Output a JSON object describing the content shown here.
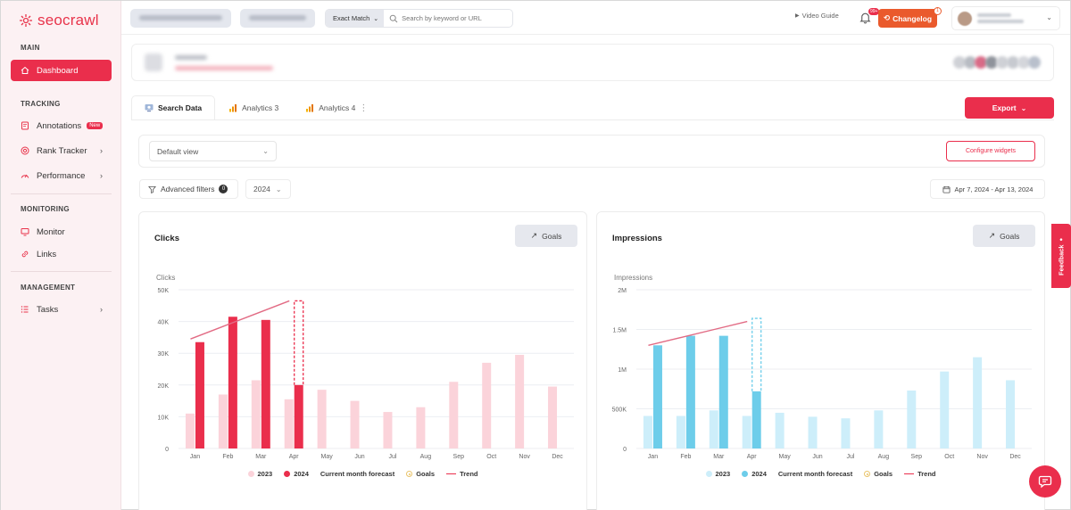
{
  "brand": {
    "name": "seocrawl",
    "accent": "#ea2e4c"
  },
  "sidebar": {
    "sections": [
      {
        "title": "MAIN",
        "items": [
          {
            "label": "Dashboard",
            "icon": "home-icon",
            "active": true
          }
        ]
      },
      {
        "title": "TRACKING",
        "items": [
          {
            "label": "Annotations",
            "icon": "note-icon",
            "badge": "New"
          },
          {
            "label": "Rank Tracker",
            "icon": "target-icon",
            "chevron": true
          },
          {
            "label": "Performance",
            "icon": "gauge-icon",
            "chevron": true
          }
        ]
      },
      {
        "title": "MONITORING",
        "items": [
          {
            "label": "Monitor",
            "icon": "monitor-icon"
          },
          {
            "label": "Links",
            "icon": "link-icon"
          }
        ]
      },
      {
        "title": "MANAGEMENT",
        "items": [
          {
            "label": "Tasks",
            "icon": "tasks-icon",
            "chevron": true
          }
        ]
      }
    ]
  },
  "topbar": {
    "match_type": "Exact Match",
    "search_placeholder": "Search by keyword or URL",
    "video_guide": "Video Guide",
    "notifications_badge": "99+",
    "changelog": "Changelog",
    "changelog_badge": "1"
  },
  "tabs": [
    {
      "label": "Search Data",
      "active": true
    },
    {
      "label": "Analytics 3"
    },
    {
      "label": "Analytics 4"
    }
  ],
  "export_label": "Export",
  "view": {
    "selected": "Default view",
    "configure_label": "Configure widgets"
  },
  "filters": {
    "advanced_label": "Advanced filters",
    "count": "0",
    "year": "2024",
    "date_range": "Apr 7, 2024 - Apr 13, 2024"
  },
  "legend": {
    "y2023": "2023",
    "y2024": "2024",
    "forecast": "Current month forecast",
    "goals": "Goals",
    "trend": "Trend"
  },
  "chart_data": [
    {
      "type": "bar",
      "title": "Clicks",
      "ylabel": "Clicks",
      "goals_label": "Goals",
      "categories": [
        "Jan",
        "Feb",
        "Mar",
        "Apr",
        "May",
        "Jun",
        "Jul",
        "Aug",
        "Sep",
        "Oct",
        "Nov",
        "Dec"
      ],
      "yticks": [
        "0",
        "10K",
        "20K",
        "30K",
        "40K",
        "50K"
      ],
      "ylim": [
        0,
        50000
      ],
      "series": [
        {
          "name": "2023",
          "color": "#fbd3da",
          "values": [
            11000,
            17000,
            21500,
            15500,
            18500,
            15000,
            11500,
            13000,
            21000,
            27000,
            29500,
            19500
          ]
        },
        {
          "name": "2024",
          "color": "#ea2e4c",
          "values": [
            33500,
            41500,
            40500,
            20000,
            null,
            null,
            null,
            null,
            null,
            null,
            null,
            null
          ]
        }
      ],
      "forecast": {
        "month": "Apr",
        "value": 46500
      },
      "trend": [
        34500,
        38500,
        42500,
        46500
      ]
    },
    {
      "type": "bar",
      "title": "Impressions",
      "ylabel": "Impressions",
      "goals_label": "Goals",
      "categories": [
        "Jan",
        "Feb",
        "Mar",
        "Apr",
        "May",
        "Jun",
        "Jul",
        "Aug",
        "Sep",
        "Oct",
        "Nov",
        "Dec"
      ],
      "yticks": [
        "0",
        "500K",
        "1M",
        "1.5M",
        "2M"
      ],
      "ylim": [
        0,
        2000000
      ],
      "series": [
        {
          "name": "2023",
          "color": "#cdeefa",
          "values": [
            410000,
            410000,
            480000,
            410000,
            450000,
            400000,
            380000,
            480000,
            730000,
            970000,
            1150000,
            860000
          ]
        },
        {
          "name": "2024",
          "color": "#6dcdea",
          "values": [
            1300000,
            1420000,
            1420000,
            720000,
            null,
            null,
            null,
            null,
            null,
            null,
            null,
            null
          ]
        }
      ],
      "forecast": {
        "month": "Apr",
        "value": 1640000
      },
      "trend": [
        1300000,
        1400000,
        1500000,
        1600000
      ]
    }
  ],
  "feedback_label": "Feedback"
}
